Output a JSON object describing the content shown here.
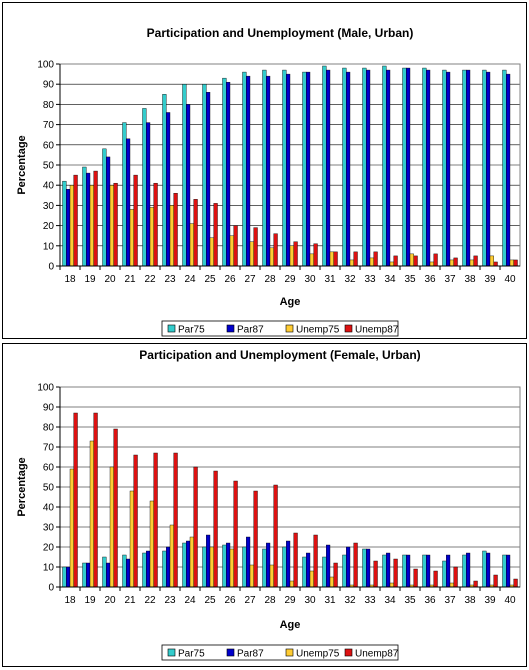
{
  "chart_data": [
    {
      "type": "bar",
      "title": "Participation and Unemployment (Male, Urban)",
      "xlabel": "Age",
      "ylabel": "Percentage",
      "ylim": [
        0,
        100
      ],
      "yticks": [
        0,
        10,
        20,
        30,
        40,
        50,
        60,
        70,
        80,
        90,
        100
      ],
      "grid": true,
      "legend": "bottom",
      "categories": [
        "18",
        "19",
        "20",
        "21",
        "22",
        "23",
        "24",
        "25",
        "26",
        "27",
        "28",
        "29",
        "30",
        "31",
        "32",
        "33",
        "34",
        "35",
        "36",
        "37",
        "38",
        "39",
        "40"
      ],
      "series": [
        {
          "name": "Par75",
          "color": "#33cccc",
          "values": [
            42,
            49,
            58,
            71,
            78,
            85,
            90,
            90,
            93,
            96,
            97,
            97,
            96,
            99,
            98,
            98,
            99,
            98,
            98,
            97,
            97,
            97,
            97
          ]
        },
        {
          "name": "Par87",
          "color": "#0000cc",
          "values": [
            38,
            46,
            54,
            63,
            71,
            76,
            80,
            86,
            91,
            94,
            94,
            95,
            96,
            97,
            96,
            97,
            97,
            98,
            97,
            96,
            97,
            96,
            95
          ]
        },
        {
          "name": "Unemp75",
          "color": "#ffcc33",
          "values": [
            40,
            40,
            40,
            28,
            29,
            30,
            21,
            14,
            15,
            12,
            9,
            10,
            6,
            7,
            3,
            4,
            2,
            6,
            2,
            3,
            3,
            5,
            3
          ]
        },
        {
          "name": "Unemp87",
          "color": "#dd1111",
          "values": [
            45,
            47,
            41,
            45,
            41,
            36,
            33,
            31,
            20,
            19,
            16,
            12,
            11,
            7,
            7,
            7,
            5,
            5,
            6,
            4,
            5,
            2,
            3
          ]
        }
      ]
    },
    {
      "type": "bar",
      "title": "Participation and Unemployment (Female, Urban)",
      "xlabel": "Age",
      "ylabel": "Percentage",
      "ylim": [
        0,
        100
      ],
      "yticks": [
        0,
        10,
        20,
        30,
        40,
        50,
        60,
        70,
        80,
        90,
        100
      ],
      "grid": true,
      "legend": "bottom",
      "categories": [
        "18",
        "19",
        "20",
        "21",
        "22",
        "23",
        "24",
        "25",
        "26",
        "27",
        "28",
        "29",
        "30",
        "31",
        "32",
        "33",
        "34",
        "35",
        "36",
        "37",
        "38",
        "39",
        "40"
      ],
      "series": [
        {
          "name": "Par75",
          "color": "#33cccc",
          "values": [
            10,
            12,
            15,
            16,
            17,
            18,
            22,
            20,
            21,
            20,
            19,
            20,
            15,
            15,
            16,
            19,
            16,
            16,
            16,
            13,
            16,
            18,
            16
          ]
        },
        {
          "name": "Par87",
          "color": "#0000cc",
          "values": [
            10,
            12,
            12,
            14,
            18,
            20,
            23,
            26,
            22,
            25,
            22,
            23,
            17,
            21,
            20,
            19,
            17,
            16,
            16,
            16,
            17,
            17,
            16
          ]
        },
        {
          "name": "Unemp75",
          "color": "#ffcc33",
          "values": [
            59,
            73,
            60,
            48,
            43,
            31,
            25,
            20,
            19,
            11,
            11,
            3,
            8,
            5,
            1,
            1,
            2,
            1,
            1,
            2,
            1,
            1,
            1
          ]
        },
        {
          "name": "Unemp87",
          "color": "#dd1111",
          "values": [
            87,
            87,
            79,
            66,
            67,
            67,
            60,
            58,
            53,
            48,
            51,
            27,
            26,
            12,
            22,
            13,
            14,
            9,
            8,
            10,
            3,
            6,
            4
          ]
        }
      ]
    }
  ]
}
